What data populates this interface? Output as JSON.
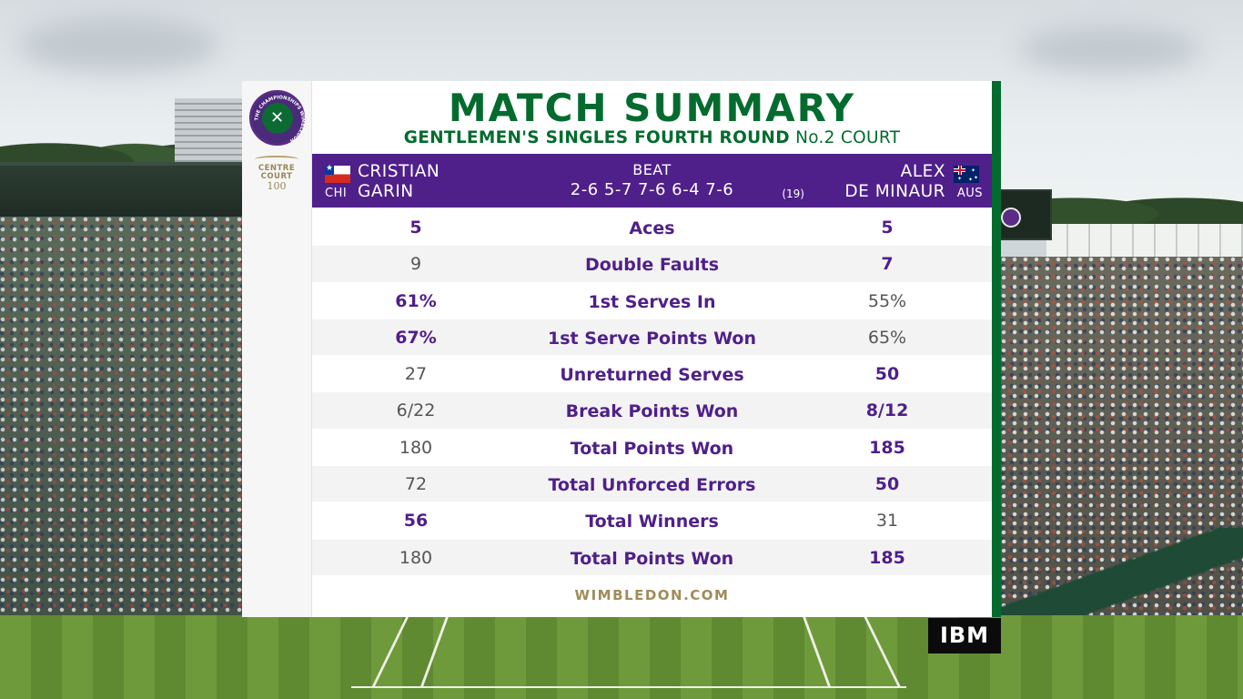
{
  "header": {
    "title": "MATCH SUMMARY",
    "round": "GENTLEMEN'S SINGLES FOURTH ROUND",
    "court": "No.2 COURT"
  },
  "logos": {
    "championships_ring": "THE CHAMPIONSHIPS WIMBLEDON",
    "centre_court_line1": "CENTRE",
    "centre_court_line2": "COURT",
    "centre_court_number": "100",
    "sponsor": "IBM"
  },
  "result": {
    "player1": {
      "first": "CRISTIAN",
      "last": "GARIN",
      "country": "CHI",
      "flag": "chile-flag-icon"
    },
    "player2": {
      "first": "ALEX",
      "last": "DE MINAUR",
      "country": "AUS",
      "seed": "(19)",
      "flag": "australia-flag-icon"
    },
    "verb": "BEAT",
    "score": "2-6 5-7 7-6 6-4 7-6"
  },
  "stats": [
    {
      "label": "Aces",
      "p1": "5",
      "p2": "5",
      "p1_bold": true,
      "p2_bold": true
    },
    {
      "label": "Double Faults",
      "p1": "9",
      "p2": "7",
      "p1_bold": false,
      "p2_bold": true
    },
    {
      "label": "1st Serves In",
      "p1": "61%",
      "p2": "55%",
      "p1_bold": true,
      "p2_bold": false
    },
    {
      "label": "1st Serve Points Won",
      "p1": "67%",
      "p2": "65%",
      "p1_bold": true,
      "p2_bold": false
    },
    {
      "label": "Unreturned Serves",
      "p1": "27",
      "p2": "50",
      "p1_bold": false,
      "p2_bold": true
    },
    {
      "label": "Break Points Won",
      "p1": "6/22",
      "p2": "8/12",
      "p1_bold": false,
      "p2_bold": true
    },
    {
      "label": "Total Points Won",
      "p1": "180",
      "p2": "185",
      "p1_bold": false,
      "p2_bold": true
    },
    {
      "label": "Total Unforced Errors",
      "p1": "72",
      "p2": "50",
      "p1_bold": false,
      "p2_bold": true
    },
    {
      "label": "Total Winners",
      "p1": "56",
      "p2": "31",
      "p1_bold": true,
      "p2_bold": false
    },
    {
      "label": "Total Points Won",
      "p1": "180",
      "p2": "185",
      "p1_bold": false,
      "p2_bold": true
    }
  ],
  "footer": {
    "site": "WIMBLEDON.COM"
  },
  "colors": {
    "wimbledon_green": "#046b2f",
    "wimbledon_purple": "#4f1f8a",
    "gold": "#a08b5a",
    "neutral_value": "#555555"
  }
}
